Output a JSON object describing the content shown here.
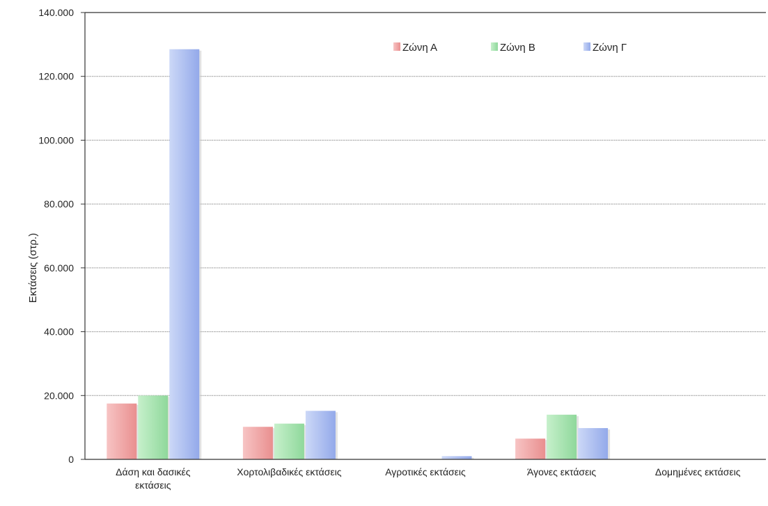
{
  "chart_data": {
    "type": "bar",
    "title": "",
    "xlabel": "",
    "ylabel": "Εκτάσεις (στρ.)",
    "ylim": [
      0,
      140000
    ],
    "yticks": [
      0,
      20000,
      40000,
      60000,
      80000,
      100000,
      120000,
      140000
    ],
    "ytick_labels": [
      "0",
      "20.000",
      "40.000",
      "60.000",
      "80.000",
      "100.000",
      "120.000",
      "140.000"
    ],
    "grid": true,
    "legend_position": "top",
    "categories": [
      "Δάση και δασικές εκτάσεις",
      "Χορτολιβαδικές εκτάσεις",
      "Αγροτικές εκτάσεις",
      "Άγονες εκτάσεις",
      "Δομημένες εκτάσεις"
    ],
    "category_lines": [
      [
        "Δάση και δασικές",
        "εκτάσεις"
      ],
      [
        "Χορτολιβαδικές εκτάσεις"
      ],
      [
        "Αγροτικές εκτάσεις"
      ],
      [
        "Άγονες εκτάσεις"
      ],
      [
        "Δομημένες εκτάσεις"
      ]
    ],
    "series": [
      {
        "name": "Ζώνη Α",
        "color": "#f2a6a6",
        "values": [
          17500,
          10200,
          0,
          6500,
          0
        ]
      },
      {
        "name": "Ζώνη Β",
        "color": "#a8e6b0",
        "values": [
          20000,
          11200,
          0,
          14000,
          0
        ]
      },
      {
        "name": "Ζώνη Γ",
        "color": "#aebff0",
        "values": [
          128500,
          15200,
          1000,
          9800,
          0
        ]
      }
    ]
  }
}
